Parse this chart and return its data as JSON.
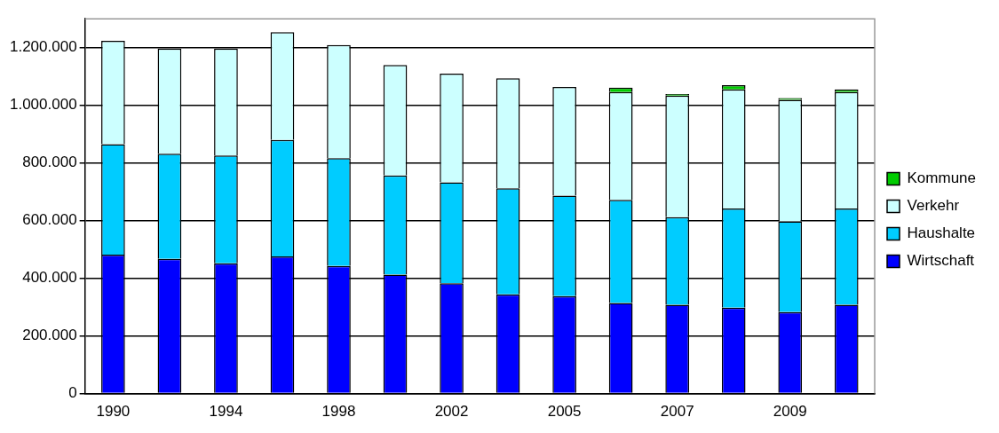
{
  "chart_data": {
    "type": "bar",
    "stacked": true,
    "categories": [
      "1990",
      null,
      "1994",
      null,
      "1998",
      null,
      "2002",
      null,
      "2005",
      null,
      "2007",
      null,
      "2009",
      null
    ],
    "series": [
      {
        "name": "Wirtschaft",
        "color": "#0000ff",
        "values": [
          482000,
          467000,
          452000,
          476000,
          443000,
          413000,
          383000,
          344000,
          338000,
          314000,
          308000,
          298000,
          283000,
          308000
        ]
      },
      {
        "name": "Haushalte",
        "color": "#00ccff",
        "values": [
          383000,
          365000,
          374000,
          404000,
          374000,
          344000,
          350000,
          368000,
          349000,
          358000,
          304000,
          344000,
          314000,
          334000
        ]
      },
      {
        "name": "Verkehr",
        "color": "#ccffff",
        "values": [
          359000,
          365000,
          371000,
          374000,
          392000,
          383000,
          377000,
          382000,
          377000,
          374000,
          422000,
          413000,
          422000,
          404000
        ]
      },
      {
        "name": "Kommune",
        "color": "#00cc00",
        "values": [
          null,
          null,
          null,
          null,
          null,
          null,
          null,
          null,
          null,
          15000,
          5000,
          15000,
          6000,
          9000
        ]
      }
    ],
    "ylim": [
      0,
      1300000
    ],
    "yticks": [
      {
        "value": 0,
        "label": "0"
      },
      {
        "value": 200000,
        "label": "200.000"
      },
      {
        "value": 400000,
        "label": "400.000"
      },
      {
        "value": 600000,
        "label": "600.000"
      },
      {
        "value": 800000,
        "label": "800.000"
      },
      {
        "value": 1000000,
        "label": "1.000.000"
      },
      {
        "value": 1200000,
        "label": "1.200.000"
      }
    ],
    "grid": "y",
    "legend": "right"
  }
}
